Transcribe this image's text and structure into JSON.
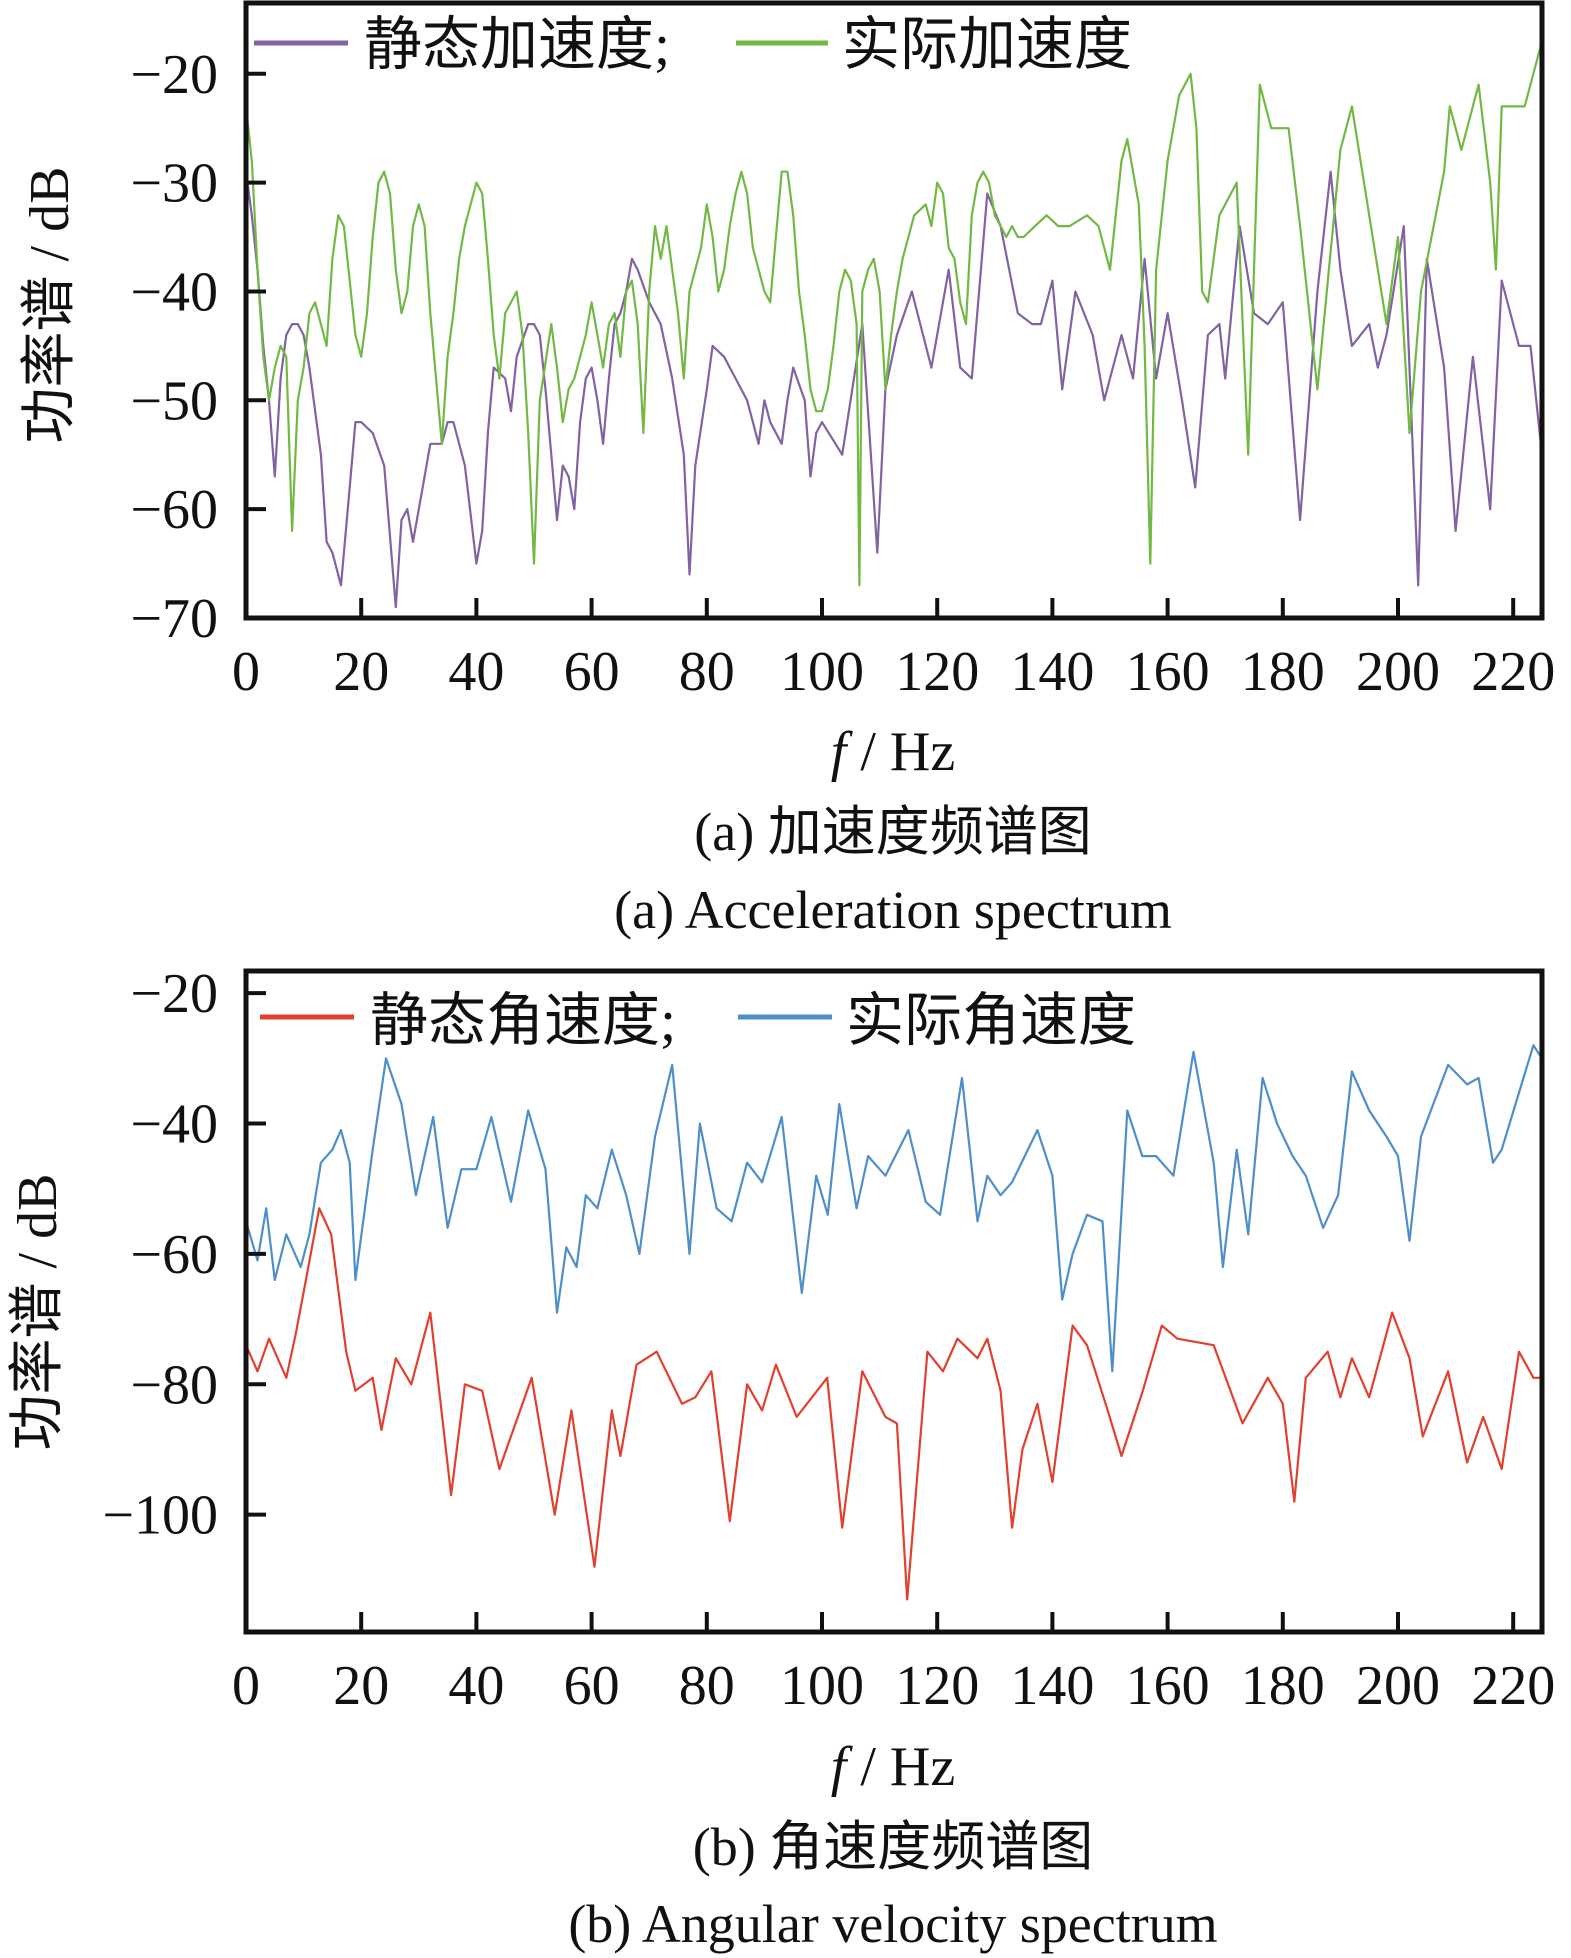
{
  "chart_data": [
    {
      "type": "line",
      "title": "",
      "caption_cn": "(a)  加速度频谱图",
      "caption_en": "(a)  Acceleration spectrum",
      "xlabel_var": "f",
      "xlabel_unit": " / Hz",
      "ylabel": "功率谱 / dB",
      "xlim": [
        0,
        225
      ],
      "ylim": [
        -70,
        -13.5
      ],
      "xticks": [
        0,
        20,
        40,
        60,
        80,
        100,
        120,
        140,
        160,
        180,
        200,
        220
      ],
      "yticks": [
        -20,
        -30,
        -40,
        -50,
        -60,
        -70
      ],
      "ytick_labels": [
        "−20",
        "−30",
        "−40",
        "−50",
        "−60",
        "−70"
      ],
      "legend": "top-left",
      "series": [
        {
          "name": "静态加速度;",
          "color": "#8262A2",
          "x": [
            0,
            1,
            2,
            3,
            4,
            5,
            6,
            7,
            8,
            9,
            10,
            11,
            13,
            14,
            15,
            16.5,
            18,
            19,
            20,
            22,
            24,
            26,
            27,
            28,
            29,
            31,
            32,
            34,
            35,
            36,
            38,
            40,
            41,
            42,
            43,
            45,
            46,
            47,
            49,
            50,
            51,
            52,
            53,
            54,
            55,
            56,
            57,
            58,
            59,
            60,
            61,
            62,
            63,
            64,
            65,
            66,
            67,
            68,
            70,
            72,
            74,
            76,
            77,
            78,
            80,
            81,
            83,
            85,
            87,
            88,
            89,
            90,
            91,
            93,
            94,
            95,
            97,
            98,
            99,
            100,
            103.5,
            107,
            109.6,
            111,
            113,
            115.6,
            119,
            122,
            124,
            126,
            128.7,
            131,
            134,
            136.5,
            138,
            140,
            141.7,
            144,
            147,
            149,
            152,
            154,
            156,
            158,
            160,
            162.5,
            164.8,
            167,
            169,
            170,
            172.5,
            175,
            177.4,
            180,
            183,
            186,
            188.3,
            190,
            192,
            195,
            196.5,
            198,
            201,
            203.5,
            205,
            208,
            210,
            213,
            216,
            218,
            221,
            223,
            225
          ],
          "y": [
            -29,
            -33,
            -38,
            -45,
            -50,
            -57,
            -48,
            -44,
            -43,
            -43,
            -44,
            -47,
            -55,
            -63,
            -64,
            -67,
            -58,
            -52,
            -52,
            -53,
            -56,
            -69,
            -61,
            -60,
            -63,
            -57,
            -54,
            -54,
            -52,
            -52,
            -56,
            -65,
            -62,
            -53,
            -47,
            -48,
            -51,
            -46,
            -43,
            -43,
            -44,
            -49,
            -55,
            -61,
            -56,
            -57,
            -60,
            -52,
            -48,
            -47,
            -50,
            -54,
            -48,
            -43,
            -42,
            -40,
            -37,
            -38,
            -41,
            -43,
            -48,
            -55,
            -66,
            -56,
            -49,
            -45,
            -46,
            -48,
            -50,
            -52,
            -54,
            -50,
            -52,
            -54,
            -50,
            -47,
            -50,
            -57,
            -53,
            -52,
            -55,
            -43,
            -64,
            -49,
            -44,
            -40,
            -47,
            -38,
            -47,
            -48,
            -31,
            -34,
            -42,
            -43,
            -43,
            -39,
            -49,
            -40,
            -44,
            -50,
            -44,
            -48,
            -37,
            -48,
            -42,
            -50,
            -58,
            -44,
            -43,
            -48,
            -34,
            -42,
            -43,
            -41,
            -61,
            -40,
            -29,
            -38,
            -45,
            -43,
            -47,
            -44,
            -34,
            -67,
            -37,
            -47,
            -62,
            -46,
            -60,
            -39,
            -45,
            -45,
            -55
          ]
        },
        {
          "name": "实际加速度",
          "color": "#72B844",
          "x": [
            0,
            1,
            2,
            3,
            4,
            5,
            6,
            7,
            8,
            9,
            10,
            11,
            12,
            13,
            14,
            15,
            16,
            17,
            18,
            19,
            20,
            21,
            22,
            23,
            24,
            25,
            26,
            27,
            28,
            29,
            30,
            31,
            32,
            34,
            35,
            36,
            37,
            38,
            40,
            41,
            42,
            43,
            44,
            45,
            47,
            48,
            49,
            50,
            51,
            53,
            54,
            55,
            56,
            57,
            58,
            59,
            60,
            61,
            62,
            63,
            64,
            65,
            66,
            67,
            68,
            69,
            70,
            71,
            72,
            73,
            74,
            75,
            76,
            77,
            79,
            80,
            81,
            82,
            83,
            84,
            85,
            86,
            87,
            88,
            90,
            91,
            92,
            93,
            94,
            95,
            96,
            97,
            98,
            99,
            100,
            101,
            102,
            103,
            104,
            105,
            106,
            106.5,
            107,
            108,
            109,
            110,
            111,
            112,
            113,
            114,
            115,
            116,
            118,
            119,
            120,
            121,
            122,
            123,
            124,
            125,
            126,
            127,
            128,
            129,
            130,
            131,
            132,
            133,
            134,
            135,
            137,
            139,
            141,
            143,
            146,
            148,
            150,
            152,
            153,
            155,
            156,
            157,
            158,
            160,
            162,
            164,
            165,
            166,
            167,
            169,
            172,
            174,
            176,
            178,
            181,
            183,
            186,
            190,
            192,
            195,
            198,
            200,
            202,
            204,
            208,
            209,
            211,
            214,
            216,
            217,
            218,
            222,
            225
          ],
          "y": [
            -23,
            -28,
            -38,
            -46,
            -50,
            -47,
            -45,
            -46,
            -62,
            -50,
            -47,
            -42,
            -41,
            -43,
            -45,
            -37,
            -33,
            -34,
            -39,
            -44,
            -46,
            -42,
            -35,
            -30,
            -29,
            -31,
            -38,
            -42,
            -40,
            -34,
            -32,
            -34,
            -42,
            -54,
            -46,
            -42,
            -37,
            -34,
            -30,
            -31,
            -37,
            -44,
            -48,
            -42,
            -40,
            -44,
            -53,
            -65,
            -50,
            -43,
            -47,
            -52,
            -49,
            -48,
            -46,
            -44,
            -41,
            -44,
            -47,
            -43,
            -42,
            -46,
            -40,
            -39,
            -43,
            -53,
            -40,
            -34,
            -37,
            -34,
            -38,
            -42,
            -48,
            -40,
            -36,
            -32,
            -35,
            -40,
            -38,
            -34,
            -31,
            -29,
            -31,
            -36,
            -40,
            -41,
            -35,
            -29,
            -29,
            -33,
            -40,
            -44,
            -49,
            -51,
            -51,
            -49,
            -45,
            -40,
            -38,
            -39,
            -43,
            -67,
            -40,
            -38,
            -37,
            -40,
            -49,
            -44,
            -40,
            -37,
            -35,
            -33,
            -32,
            -34,
            -30,
            -31,
            -36,
            -37,
            -41,
            -43,
            -33,
            -30,
            -29,
            -30,
            -33,
            -34,
            -35,
            -34,
            -35,
            -35,
            -34,
            -33,
            -34,
            -34,
            -33,
            -34,
            -38,
            -28,
            -26,
            -32,
            -45,
            -65,
            -38,
            -28,
            -22,
            -20,
            -25,
            -40,
            -41,
            -33,
            -30,
            -55,
            -21,
            -25,
            -25,
            -34,
            -49,
            -27,
            -23,
            -33,
            -43,
            -35,
            -53,
            -40,
            -29,
            -23,
            -27,
            -21,
            -30,
            -38,
            -23,
            -23,
            -17
          ]
        }
      ]
    },
    {
      "type": "line",
      "title": "",
      "caption_cn": "(b)  角速度频谱图",
      "caption_en": "(b)  Angular velocity spectrum",
      "xlabel_var": "f",
      "xlabel_unit": " / Hz",
      "ylabel": "功率谱 / dB",
      "xlim": [
        0,
        225
      ],
      "ylim": [
        -118,
        -16.6
      ],
      "xticks": [
        0,
        20,
        40,
        60,
        80,
        100,
        120,
        140,
        160,
        180,
        200,
        220
      ],
      "yticks": [
        -20,
        -40,
        -60,
        -80,
        -100
      ],
      "ytick_labels": [
        "−20",
        "−40",
        "−60",
        "−80",
        "−100"
      ],
      "legend": "top-left",
      "series": [
        {
          "name": "静态角速度;",
          "color": "#E2402E",
          "x": [
            0,
            2,
            4,
            7,
            8.7,
            10.4,
            12.7,
            14.8,
            17.4,
            19,
            22,
            23.5,
            26,
            28.7,
            32,
            35.6,
            38,
            41,
            44,
            49.6,
            53.6,
            56.5,
            60.5,
            63.5,
            65,
            67.8,
            71.3,
            75.7,
            78,
            80.8,
            84,
            87,
            89.6,
            92,
            95.6,
            100.9,
            103.5,
            107,
            111,
            113,
            114.8,
            118.3,
            121,
            123.5,
            127,
            128.7,
            131,
            133,
            134.8,
            137.4,
            140,
            143.5,
            146,
            149.6,
            152,
            155.7,
            159,
            161.7,
            168,
            173,
            177.4,
            180,
            182,
            184,
            187.8,
            190,
            192,
            195,
            199,
            202,
            204.3,
            208.7,
            212,
            214.8,
            218,
            221,
            223.5,
            225
          ],
          "y": [
            -74,
            -78,
            -73,
            -79,
            -72,
            -64,
            -53,
            -57,
            -75,
            -81,
            -79,
            -87,
            -76,
            -80,
            -69,
            -97,
            -80,
            -81,
            -93,
            -79,
            -100,
            -84,
            -108,
            -84,
            -91,
            -77,
            -75,
            -83,
            -82,
            -78,
            -101,
            -80,
            -84,
            -77,
            -85,
            -79,
            -102,
            -78,
            -85,
            -86,
            -113,
            -75,
            -78,
            -73,
            -76,
            -73,
            -81,
            -102,
            -90,
            -83,
            -95,
            -71,
            -74,
            -84,
            -91,
            -81,
            -71,
            -73,
            -74,
            -86,
            -79,
            -83,
            -98,
            -79,
            -75,
            -82,
            -76,
            -82,
            -69,
            -76,
            -88,
            -78,
            -92,
            -85,
            -93,
            -75,
            -79,
            -79
          ]
        },
        {
          "name": "实际角速度",
          "color": "#4E8FCA",
          "x": [
            0,
            2,
            3.5,
            5,
            7,
            9.5,
            11,
            13,
            15,
            16.5,
            18,
            19,
            22,
            24.3,
            27,
            29.5,
            32.5,
            35,
            37.4,
            40,
            42.6,
            46,
            49,
            52,
            54,
            55.6,
            57.4,
            59,
            61,
            63.5,
            66,
            68.3,
            71,
            74,
            77,
            78.8,
            81.7,
            84.3,
            87,
            89.6,
            93,
            96.5,
            99,
            101,
            103,
            106,
            108,
            111,
            115,
            118,
            120.5,
            124.3,
            127,
            128.7,
            131,
            133,
            137.4,
            140,
            141.7,
            143.5,
            146,
            148.7,
            150.4,
            153,
            155.6,
            158,
            161,
            164.5,
            168,
            169.6,
            172,
            174,
            176.5,
            179,
            181.7,
            184,
            187,
            189.6,
            192,
            195,
            198,
            200,
            202,
            204,
            208.7,
            212,
            214,
            216.5,
            218,
            223.5,
            225
          ],
          "y": [
            -55,
            -61,
            -53,
            -64,
            -57,
            -62,
            -57,
            -46,
            -44,
            -41,
            -46,
            -64,
            -44,
            -30,
            -37,
            -51,
            -39,
            -56,
            -47,
            -47,
            -39,
            -52,
            -38,
            -47,
            -69,
            -59,
            -62,
            -51,
            -53,
            -44,
            -51,
            -60,
            -42,
            -31,
            -60,
            -40,
            -53,
            -55,
            -46,
            -49,
            -39,
            -66,
            -48,
            -54,
            -37,
            -53,
            -45,
            -48,
            -41,
            -52,
            -54,
            -33,
            -55,
            -48,
            -51,
            -49,
            -41,
            -48,
            -67,
            -60,
            -54,
            -55,
            -78,
            -38,
            -45,
            -45,
            -48,
            -29,
            -46,
            -62,
            -44,
            -57,
            -33,
            -40,
            -45,
            -48,
            -56,
            -51,
            -32,
            -38,
            -42,
            -45,
            -58,
            -42,
            -31,
            -34,
            -33,
            -46,
            -44,
            -28,
            -30
          ]
        }
      ]
    }
  ]
}
